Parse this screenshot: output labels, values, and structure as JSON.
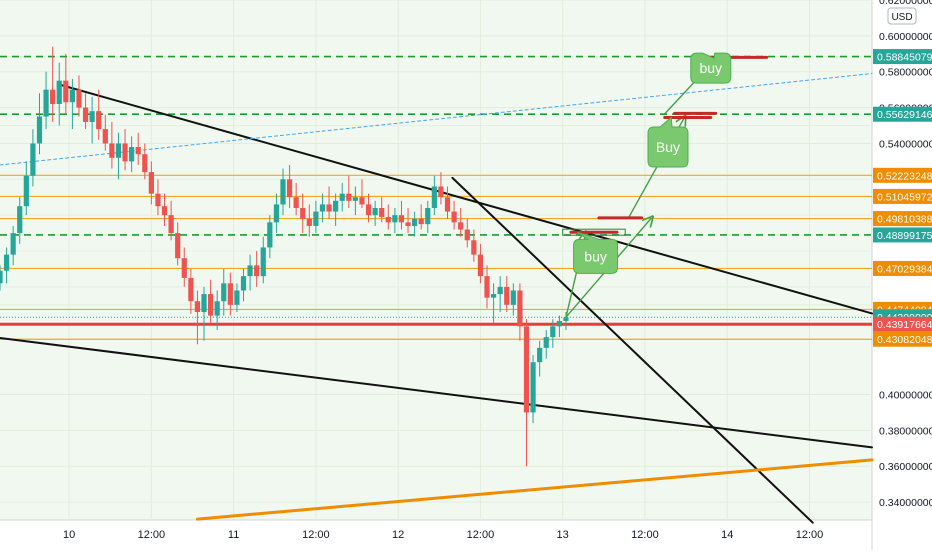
{
  "chart_data": {
    "type": "candlestick",
    "currency": "USD",
    "ylim": [
      0.33,
      0.62
    ],
    "y_ticks": [
      0.34,
      0.36,
      0.38,
      0.4,
      0.54,
      0.56,
      0.58,
      0.6,
      0.62
    ],
    "y_tick_labels": [
      "0.34000000",
      "0.36000000",
      "0.38000000",
      "0.40000000",
      "0.54000000",
      "0.56000000",
      "0.58000000",
      "0.60000000",
      "0.62000000"
    ],
    "x_ticks": [
      {
        "label": "10",
        "t": 0.0
      },
      {
        "label": "12:00",
        "t": 0.5
      },
      {
        "label": "11",
        "t": 1.0
      },
      {
        "label": "12:00",
        "t": 1.5
      },
      {
        "label": "12",
        "t": 2.0
      },
      {
        "label": "12:00",
        "t": 2.5
      },
      {
        "label": "13",
        "t": 3.0
      },
      {
        "label": "12:00",
        "t": 3.5
      },
      {
        "label": "14",
        "t": 4.0
      },
      {
        "label": "12:00",
        "t": 4.5
      }
    ],
    "xlim": [
      -0.42,
      4.88
    ],
    "levels": [
      {
        "value": 0.58845079,
        "label": "0.58845079",
        "style": "dashed",
        "color": "#1a9c2e",
        "badge": "#26a69a"
      },
      {
        "value": 0.55629146,
        "label": "0.55629146",
        "style": "dashed",
        "color": "#1a9c2e",
        "badge": "#26a69a"
      },
      {
        "value": 0.52223248,
        "label": "0.52223248",
        "style": "solid",
        "color": "#f5a623",
        "badge": "#f08c00"
      },
      {
        "value": 0.51045972,
        "label": "0.51045972",
        "style": "solid",
        "color": "#f5a623",
        "badge": "#f08c00"
      },
      {
        "value": 0.49810388,
        "label": "0.49810388",
        "style": "solid",
        "color": "#f5a623",
        "badge": "#f08c00"
      },
      {
        "value": 0.48899175,
        "label": "0.48899175",
        "style": "dashed",
        "color": "#1a9c2e",
        "badge": "#26a69a"
      },
      {
        "value": 0.47029384,
        "label": "0.47029384",
        "style": "solid",
        "color": "#f5a623",
        "badge": "#f08c00"
      },
      {
        "value": 0.44744084,
        "label": "0.44744084",
        "style": "solid",
        "color": "#f5a623",
        "badge": "#f08c00"
      },
      {
        "value": 0.44334,
        "label": "0.44334000",
        "style": "none",
        "color": "#ef5350",
        "badge": "#ef5350"
      },
      {
        "value": 0.44309,
        "label": "0.44309000",
        "style": "dotted",
        "color": "#26a69a",
        "badge": "#26a69a"
      },
      {
        "value": 0.43917664,
        "label": "0.43917664",
        "style": "thick",
        "color": "#ef3b36",
        "badge": "#ef5350"
      },
      {
        "value": 0.43082048,
        "label": "0.43082048",
        "style": "solid",
        "color": "#f5a623",
        "badge": "#f08c00"
      }
    ],
    "trend_lines": [
      {
        "name": "upper-descending",
        "from": [
          -0.05,
          0.5726
        ],
        "to": [
          4.88,
          0.4452
        ],
        "color": "#111111",
        "width": 2
      },
      {
        "name": "lower-descending",
        "from": [
          -0.42,
          0.4315
        ],
        "to": [
          4.88,
          0.3705
        ],
        "color": "#111111",
        "width": 2
      },
      {
        "name": "steep-descending",
        "from": [
          2.33,
          0.5208
        ],
        "to": [
          4.52,
          0.3285
        ],
        "color": "#111111",
        "width": 2
      },
      {
        "name": "orange-support",
        "from": [
          0.78,
          0.3305
        ],
        "to": [
          4.88,
          0.3635
        ],
        "color": "#f08c00",
        "width": 3
      },
      {
        "name": "blue-dotted-channel",
        "from": [
          -0.42,
          0.528
        ],
        "to": [
          4.88,
          0.579
        ],
        "color": "#42a5f5",
        "width": 1,
        "dash": "3,3"
      }
    ],
    "candles": [
      [
        -0.42,
        0.462,
        0.472,
        0.458,
        0.469
      ],
      [
        -0.38,
        0.469,
        0.482,
        0.462,
        0.478
      ],
      [
        -0.34,
        0.478,
        0.494,
        0.472,
        0.49
      ],
      [
        -0.3,
        0.49,
        0.51,
        0.484,
        0.505
      ],
      [
        -0.26,
        0.505,
        0.53,
        0.5,
        0.522
      ],
      [
        -0.22,
        0.522,
        0.548,
        0.516,
        0.54
      ],
      [
        -0.18,
        0.54,
        0.568,
        0.534,
        0.555
      ],
      [
        -0.14,
        0.555,
        0.58,
        0.548,
        0.57
      ],
      [
        -0.1,
        0.57,
        0.594,
        0.552,
        0.562
      ],
      [
        -0.06,
        0.562,
        0.585,
        0.55,
        0.575
      ],
      [
        -0.02,
        0.575,
        0.59,
        0.556,
        0.563
      ],
      [
        0.02,
        0.563,
        0.576,
        0.548,
        0.57
      ],
      [
        0.06,
        0.57,
        0.578,
        0.555,
        0.56
      ],
      [
        0.1,
        0.56,
        0.568,
        0.548,
        0.552
      ],
      [
        0.14,
        0.552,
        0.566,
        0.54,
        0.558
      ],
      [
        0.18,
        0.558,
        0.57,
        0.542,
        0.548
      ],
      [
        0.22,
        0.548,
        0.556,
        0.536,
        0.54
      ],
      [
        0.26,
        0.54,
        0.552,
        0.526,
        0.532
      ],
      [
        0.3,
        0.532,
        0.546,
        0.52,
        0.54
      ],
      [
        0.34,
        0.54,
        0.548,
        0.525,
        0.53
      ],
      [
        0.38,
        0.53,
        0.544,
        0.524,
        0.538
      ],
      [
        0.42,
        0.538,
        0.546,
        0.528,
        0.534
      ],
      [
        0.46,
        0.534,
        0.54,
        0.52,
        0.524
      ],
      [
        0.5,
        0.524,
        0.53,
        0.506,
        0.512
      ],
      [
        0.54,
        0.512,
        0.52,
        0.5,
        0.505
      ],
      [
        0.58,
        0.505,
        0.512,
        0.494,
        0.5
      ],
      [
        0.62,
        0.5,
        0.508,
        0.486,
        0.49
      ],
      [
        0.66,
        0.49,
        0.496,
        0.472,
        0.476
      ],
      [
        0.7,
        0.476,
        0.482,
        0.46,
        0.465
      ],
      [
        0.74,
        0.465,
        0.47,
        0.445,
        0.452
      ],
      [
        0.78,
        0.452,
        0.458,
        0.428,
        0.446
      ],
      [
        0.82,
        0.446,
        0.46,
        0.43,
        0.456
      ],
      [
        0.86,
        0.456,
        0.464,
        0.44,
        0.444
      ],
      [
        0.9,
        0.444,
        0.458,
        0.436,
        0.452
      ],
      [
        0.94,
        0.452,
        0.47,
        0.444,
        0.462
      ],
      [
        0.98,
        0.462,
        0.468,
        0.444,
        0.45
      ],
      [
        1.02,
        0.45,
        0.462,
        0.446,
        0.458
      ],
      [
        1.06,
        0.458,
        0.47,
        0.452,
        0.466
      ],
      [
        1.1,
        0.466,
        0.478,
        0.458,
        0.472
      ],
      [
        1.14,
        0.472,
        0.48,
        0.46,
        0.466
      ],
      [
        1.18,
        0.466,
        0.488,
        0.462,
        0.482
      ],
      [
        1.22,
        0.482,
        0.5,
        0.476,
        0.496
      ],
      [
        1.26,
        0.496,
        0.512,
        0.49,
        0.506
      ],
      [
        1.3,
        0.506,
        0.526,
        0.5,
        0.52
      ],
      [
        1.34,
        0.52,
        0.528,
        0.504,
        0.51
      ],
      [
        1.38,
        0.51,
        0.518,
        0.5,
        0.504
      ],
      [
        1.42,
        0.504,
        0.512,
        0.49,
        0.498
      ],
      [
        1.46,
        0.498,
        0.506,
        0.488,
        0.494
      ],
      [
        1.5,
        0.494,
        0.508,
        0.49,
        0.502
      ],
      [
        1.54,
        0.502,
        0.512,
        0.496,
        0.506
      ],
      [
        1.58,
        0.506,
        0.516,
        0.498,
        0.502
      ],
      [
        1.62,
        0.502,
        0.512,
        0.494,
        0.508
      ],
      [
        1.66,
        0.508,
        0.518,
        0.502,
        0.512
      ],
      [
        1.7,
        0.512,
        0.522,
        0.504,
        0.508
      ],
      [
        1.74,
        0.508,
        0.516,
        0.5,
        0.51
      ],
      [
        1.78,
        0.51,
        0.52,
        0.504,
        0.506
      ],
      [
        1.82,
        0.506,
        0.512,
        0.496,
        0.5
      ],
      [
        1.86,
        0.5,
        0.508,
        0.494,
        0.504
      ],
      [
        1.9,
        0.504,
        0.51,
        0.496,
        0.499
      ],
      [
        1.94,
        0.499,
        0.506,
        0.492,
        0.496
      ],
      [
        1.98,
        0.496,
        0.504,
        0.49,
        0.5
      ],
      [
        2.02,
        0.5,
        0.508,
        0.492,
        0.496
      ],
      [
        2.06,
        0.496,
        0.504,
        0.49,
        0.494
      ],
      [
        2.1,
        0.494,
        0.502,
        0.488,
        0.498
      ],
      [
        2.14,
        0.498,
        0.506,
        0.492,
        0.495
      ],
      [
        2.18,
        0.495,
        0.508,
        0.49,
        0.504
      ],
      [
        2.22,
        0.504,
        0.522,
        0.5,
        0.516
      ],
      [
        2.26,
        0.516,
        0.524,
        0.506,
        0.51
      ],
      [
        2.3,
        0.51,
        0.516,
        0.498,
        0.502
      ],
      [
        2.34,
        0.502,
        0.508,
        0.492,
        0.496
      ],
      [
        2.38,
        0.496,
        0.504,
        0.488,
        0.492
      ],
      [
        2.42,
        0.492,
        0.498,
        0.482,
        0.486
      ],
      [
        2.46,
        0.486,
        0.492,
        0.474,
        0.478
      ],
      [
        2.5,
        0.478,
        0.484,
        0.462,
        0.466
      ],
      [
        2.54,
        0.466,
        0.472,
        0.448,
        0.454
      ],
      [
        2.58,
        0.454,
        0.462,
        0.44,
        0.456
      ],
      [
        2.62,
        0.456,
        0.466,
        0.446,
        0.46
      ],
      [
        2.66,
        0.46,
        0.466,
        0.446,
        0.45
      ],
      [
        2.7,
        0.45,
        0.462,
        0.444,
        0.458
      ],
      [
        2.74,
        0.458,
        0.462,
        0.43,
        0.438
      ],
      [
        2.78,
        0.438,
        0.442,
        0.36,
        0.39
      ],
      [
        2.82,
        0.39,
        0.422,
        0.384,
        0.418
      ],
      [
        2.86,
        0.418,
        0.43,
        0.41,
        0.426
      ],
      [
        2.9,
        0.426,
        0.436,
        0.42,
        0.432
      ],
      [
        2.94,
        0.432,
        0.442,
        0.426,
        0.438
      ],
      [
        2.98,
        0.438,
        0.444,
        0.432,
        0.441
      ],
      [
        3.02,
        0.441,
        0.446,
        0.436,
        0.443
      ]
    ],
    "breakout_box": {
      "value": 0.4905,
      "t1": 3.0,
      "t2": 3.38
    },
    "targets": [
      {
        "t1": 3.05,
        "t2": 3.33,
        "value": 0.4905
      },
      {
        "t1": 3.22,
        "t2": 3.48,
        "value": 0.4985
      },
      {
        "t1": 3.68,
        "t2": 3.93,
        "value": 0.5568
      },
      {
        "t1": 3.62,
        "t2": 3.9,
        "value": 0.5545
      },
      {
        "t1": 3.88,
        "t2": 4.24,
        "value": 0.588
      }
    ],
    "arrows": [
      {
        "from": [
          3.02,
          0.4431
        ],
        "to": [
          3.14,
          0.49
        ]
      },
      {
        "from": [
          3.02,
          0.4431
        ],
        "to": [
          3.54,
          0.4985
        ]
      },
      {
        "from": [
          3.4,
          0.4985
        ],
        "to": [
          3.74,
          0.5545
        ]
      },
      {
        "from": [
          3.62,
          0.5565
        ],
        "to": [
          3.94,
          0.588
        ]
      }
    ],
    "callouts": [
      {
        "text": "buy",
        "t": 3.2,
        "y": 0.477,
        "w": 44,
        "h": 34,
        "tail": [
          3.09,
          0.4905
        ]
      },
      {
        "text": "Buy",
        "t": 3.64,
        "y": 0.538,
        "w": 40,
        "h": 40,
        "tail": [
          3.66,
          0.5545
        ]
      },
      {
        "text": "buy",
        "t": 3.9,
        "y": 0.582,
        "w": 40,
        "h": 30,
        "tail": [
          3.92,
          0.5875
        ]
      }
    ]
  }
}
